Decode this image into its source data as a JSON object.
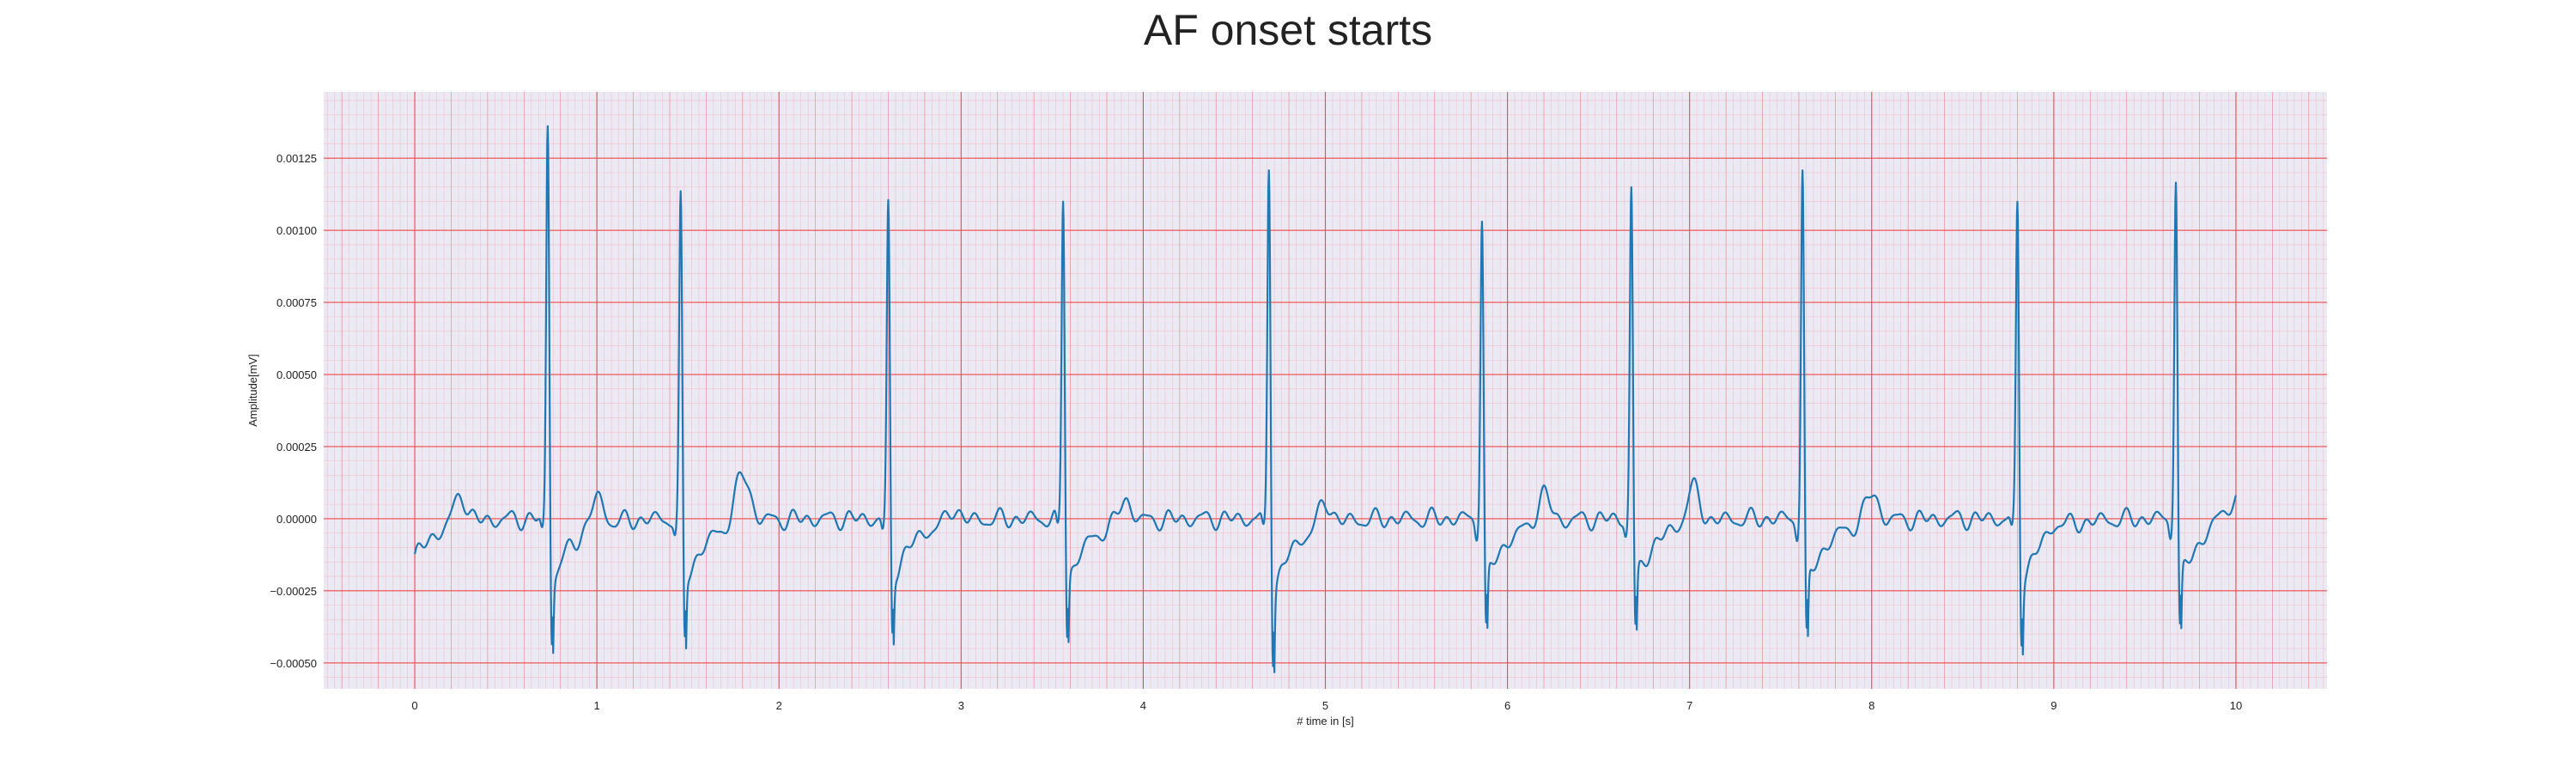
{
  "chart_data": {
    "type": "line",
    "title": "AF onset starts",
    "xlabel": "# time in [s]",
    "ylabel": "Amplitude[mV]",
    "xlim": [
      -0.5,
      10.5
    ],
    "ylim": [
      -0.00059,
      0.00148
    ],
    "x_ticks": [
      0,
      1,
      2,
      3,
      4,
      5,
      6,
      7,
      8,
      9,
      10
    ],
    "y_ticks": [
      -0.0005,
      -0.00025,
      0.0,
      0.00025,
      0.0005,
      0.00075,
      0.001,
      0.00125
    ],
    "x_tick_labels": [
      "0",
      "1",
      "2",
      "3",
      "4",
      "5",
      "6",
      "7",
      "8",
      "9",
      "10"
    ],
    "y_tick_labels": [
      "−0.00050",
      "−0.00025",
      "0.00000",
      "0.00025",
      "0.00050",
      "0.00075",
      "0.00100",
      "0.00125"
    ],
    "grid": true,
    "background": "#ebe9f3",
    "major_grid_color": "#ee4a4a",
    "minor_grid_color": "#f3b2bb",
    "series": [
      {
        "color": "#1f77b4",
        "r_peaks": [
          {
            "t": 0.73,
            "peak": 0.00137,
            "trough": -0.00044
          },
          {
            "t": 1.46,
            "peak": 0.0011,
            "trough": -0.00044
          },
          {
            "t": 2.6,
            "peak": 0.00108,
            "trough": -0.00041
          },
          {
            "t": 3.56,
            "peak": 0.00112,
            "trough": -0.00042
          },
          {
            "t": 4.69,
            "peak": 0.00123,
            "trough": -0.0005
          },
          {
            "t": 5.86,
            "peak": 0.00105,
            "trough": -0.00041
          },
          {
            "t": 6.68,
            "peak": 0.00115,
            "trough": -0.00041
          },
          {
            "t": 7.62,
            "peak": 0.00121,
            "trough": -0.00044
          },
          {
            "t": 8.8,
            "peak": 0.00109,
            "trough": -0.00043
          },
          {
            "t": 9.67,
            "peak": 0.00119,
            "trough": -0.00041
          }
        ],
        "waves": [
          {
            "t": 0.25,
            "amp": 0.0001,
            "width": 0.035
          },
          {
            "t": 1.0,
            "amp": 0.0001,
            "width": 0.035
          },
          {
            "t": 1.8,
            "amp": 0.00017,
            "width": 0.04
          },
          {
            "t": 2.96,
            "amp": 5e-05,
            "width": 0.03
          },
          {
            "t": 3.9,
            "amp": 8e-05,
            "width": 0.035
          },
          {
            "t": 5.0,
            "amp": 8e-05,
            "width": 0.035
          },
          {
            "t": 6.2,
            "amp": 0.0001,
            "width": 0.035
          },
          {
            "t": 7.02,
            "amp": 0.00012,
            "width": 0.035
          },
          {
            "t": 8.0,
            "amp": 0.0001,
            "width": 0.035
          },
          {
            "t": 9.02,
            "amp": 3e-05,
            "width": 0.035
          }
        ],
        "start_value": -0.00014,
        "end_value": 8e-05
      }
    ]
  }
}
